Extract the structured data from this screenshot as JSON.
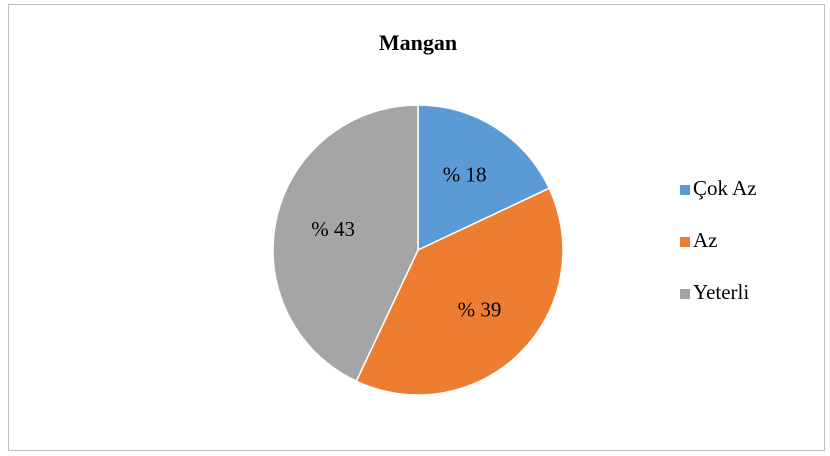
{
  "chart_data": {
    "type": "pie",
    "title": "Mangan",
    "categories": [
      "Çok Az",
      "Az",
      "Yeterli"
    ],
    "values": [
      18,
      39,
      43
    ],
    "value_labels": [
      "% 18",
      "% 39",
      "% 43"
    ],
    "colors": [
      "#5b9bd5",
      "#ed7d31",
      "#a5a5a5"
    ],
    "legend": "right"
  }
}
